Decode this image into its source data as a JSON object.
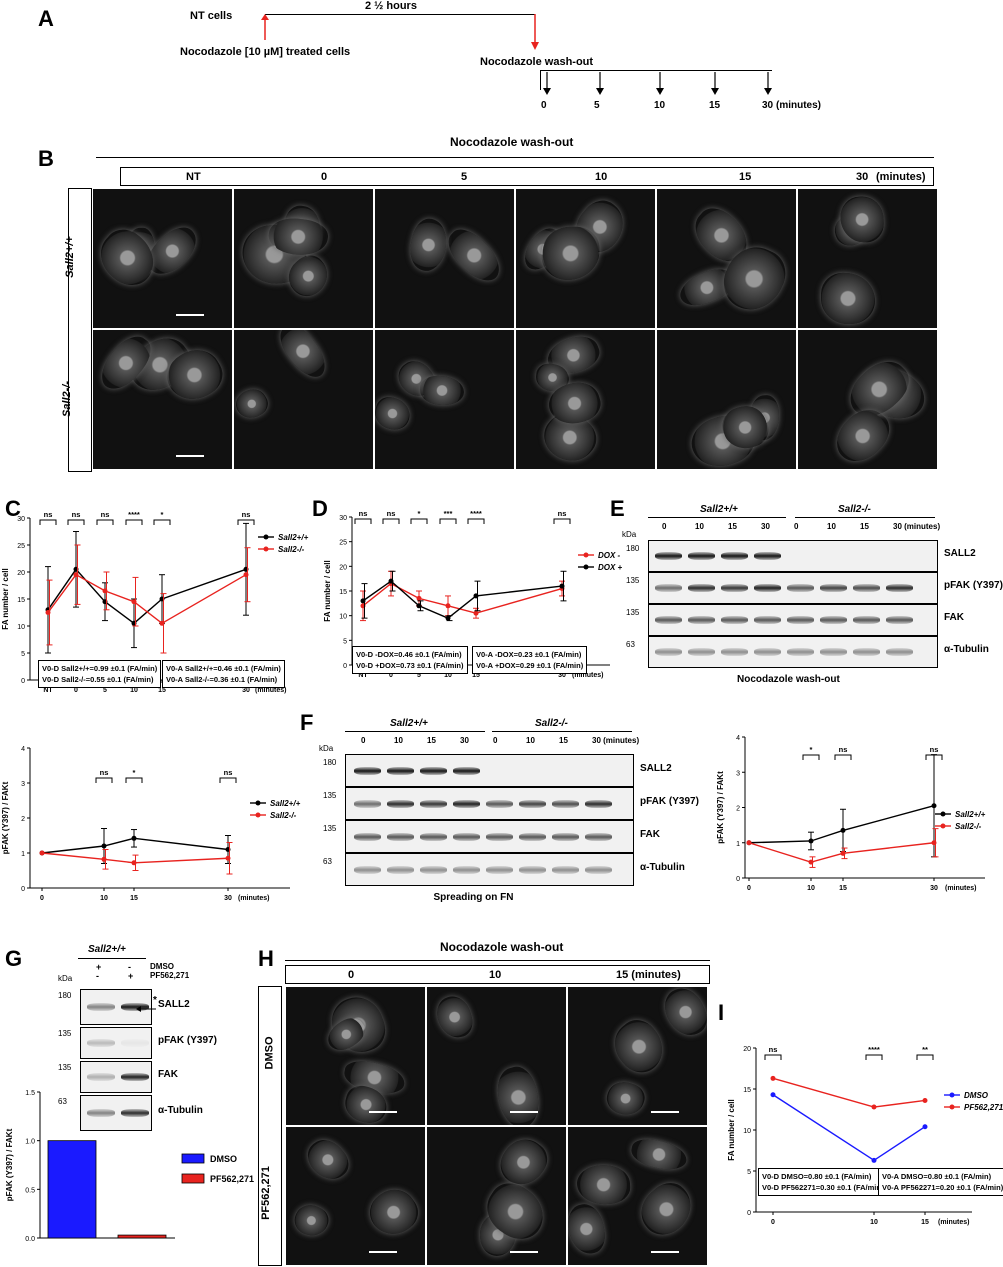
{
  "panel_letters": {
    "a": "A",
    "b": "B",
    "c": "C",
    "d": "D",
    "e": "E",
    "f": "F",
    "g": "G",
    "h": "H",
    "i": "I"
  },
  "panelA": {
    "nt_cells": "NT cells",
    "duration": "2 ½ hours",
    "noco_treated": "Nocodazole [10 µM] treated cells",
    "washout": "Nocodazole wash-out",
    "times": [
      "0",
      "5",
      "10",
      "15",
      "30"
    ],
    "unit": "(minutes)"
  },
  "panelB": {
    "title": "Nocodazole wash-out",
    "columns": [
      "NT",
      "0",
      "5",
      "10",
      "15",
      "30"
    ],
    "unit": "(minutes)",
    "rows": [
      "Sall2+/+",
      "Sall2-/-"
    ],
    "scale": "50 µm"
  },
  "panelC": {
    "legend": [
      "Sall2+/+",
      "Sall2-/-"
    ],
    "box1_l1": "V0-D Sall2+/+=0.99 ±0.1 (FA/min)",
    "box1_l2": "V0-D Sall2-/-=0.55 ±0.1 (FA/min)",
    "box2_l1": "V0-A Sall2+/+=0.46 ±0.1 (FA/min)",
    "box2_l2": "V0-A Sall2-/-=0.36 ±0.1 (FA/min)"
  },
  "panelD": {
    "legend": [
      "DOX -",
      "DOX +"
    ],
    "box1_l1": "V0-D -DOX=0.46 ±0.1 (FA/min)",
    "box1_l2": "V0-D +DOX=0.73 ±0.1 (FA/min)",
    "box2_l1": "V0-A -DOX=0.23 ±0.1 (FA/min)",
    "box2_l2": "V0-A +DOX=0.29 ±0.1 (FA/min)"
  },
  "blotE": {
    "groups": [
      "Sall2+/+",
      "Sall2-/-"
    ],
    "lanes": [
      "0",
      "10",
      "15",
      "30",
      "0",
      "10",
      "15",
      "30 (minutes)"
    ],
    "kda_title": "kDa",
    "markers": [
      "180",
      "135",
      "135",
      "63"
    ],
    "proteins": [
      "SALL2",
      "pFAK (Y397)",
      "FAK",
      "α-Tubulin"
    ],
    "caption": "Nocodazole wash-out"
  },
  "blotF": {
    "groups": [
      "Sall2+/+",
      "Sall2-/-"
    ],
    "lanes": [
      "0",
      "10",
      "15",
      "30",
      "0",
      "10",
      "15",
      "30 (minutes)"
    ],
    "kda_title": "kDa",
    "markers": [
      "180",
      "135",
      "135",
      "63"
    ],
    "proteins": [
      "SALL2",
      "pFAK (Y397)",
      "FAK",
      "α-Tubulin"
    ],
    "caption": "Spreading on FN"
  },
  "blotG": {
    "group": "Sall2+/+",
    "dmso_row": [
      "+",
      "-",
      "DMSO"
    ],
    "pf_row": [
      "-",
      "+",
      "PF562,271"
    ],
    "kda_title": "kDa",
    "markers": [
      "180",
      "135",
      "135",
      "63"
    ],
    "proteins": [
      "SALL2",
      "pFAK (Y397)",
      "FAK",
      "α-Tubulin"
    ],
    "asterisk": "*"
  },
  "panelH": {
    "title": "Nocodazole wash-out",
    "columns": [
      "0",
      "10",
      "15 (minutes)"
    ],
    "rows": [
      "DMSO",
      "PF562,271"
    ]
  },
  "panelI": {
    "legend": [
      "DMSO",
      "PF562,271"
    ],
    "box1_l1": "V0-D DMSO=0.80 ±0.1 (FA/min)",
    "box1_l2": "V0-D PF562271=0.30 ±0.1 (FA/min)",
    "box2_l1": "V0-A DMSO=0.80 ±0.1 (FA/min)",
    "box2_l2": "V0-A PF562271=0.20 ±0.1 (FA/min)"
  },
  "colors": {
    "black_series": "#000000",
    "red_series": "#e8231f",
    "blue_series": "#1a1aff"
  },
  "chart_data": [
    {
      "id": "C_top",
      "type": "line",
      "x_ticks": [
        "NT",
        "0",
        "5",
        "10",
        "15",
        "30"
      ],
      "xlabel": "(minutes)",
      "ylabel": "FA number / cell",
      "ylim": [
        0,
        30
      ],
      "series": [
        {
          "name": "Sall2+/+",
          "color": "#000000",
          "y": [
            13,
            20.5,
            14.5,
            10.5,
            15,
            20.5
          ],
          "err": [
            8,
            7,
            3.5,
            4.5,
            4.5,
            8.5
          ]
        },
        {
          "name": "Sall2-/-",
          "color": "#e8231f",
          "y": [
            12.5,
            19.5,
            16.5,
            14.5,
            10.5,
            19.5
          ],
          "err": [
            6,
            5.5,
            3.5,
            4.5,
            5.5,
            5
          ]
        }
      ],
      "significance": [
        "ns",
        "ns",
        "ns",
        "****",
        "*",
        "ns"
      ]
    },
    {
      "id": "C_bottom",
      "type": "line",
      "x_ticks": [
        "0",
        "10",
        "15",
        "30"
      ],
      "xlabel": "(minutes)",
      "ylabel": "pFAK (Y397) / FAKt",
      "ylim": [
        0,
        4
      ],
      "series": [
        {
          "name": "Sall2+/+",
          "color": "#000000",
          "y": [
            1,
            1.2,
            1.42,
            1.1
          ],
          "err": [
            0,
            0.5,
            0.25,
            0.4
          ]
        },
        {
          "name": "Sall2-/-",
          "color": "#e8231f",
          "y": [
            1,
            0.82,
            0.72,
            0.85
          ],
          "err": [
            0,
            0.28,
            0.22,
            0.45
          ]
        }
      ],
      "significance": [
        "ns",
        "*",
        "ns"
      ]
    },
    {
      "id": "D",
      "type": "line",
      "x_ticks": [
        "NT",
        "0",
        "5",
        "10",
        "15",
        "30"
      ],
      "xlabel": "(minutes)",
      "ylabel": "FA number / cell",
      "ylim": [
        0,
        30
      ],
      "series": [
        {
          "name": "DOX -",
          "color": "#e8231f",
          "y": [
            12,
            16.5,
            13.5,
            12,
            10.5,
            15.5
          ],
          "err": [
            3,
            2.5,
            1.5,
            2,
            1,
            1.5
          ]
        },
        {
          "name": "DOX +",
          "color": "#000000",
          "y": [
            13,
            17,
            12,
            9.5,
            14,
            16
          ],
          "err": [
            3.5,
            2,
            1,
            0.5,
            3,
            3
          ]
        }
      ],
      "significance": [
        "ns",
        "ns",
        "*",
        "***",
        "****",
        "ns"
      ]
    },
    {
      "id": "F_chart",
      "type": "line",
      "x_ticks": [
        "0",
        "10",
        "15",
        "30"
      ],
      "xlabel": "(minutes)",
      "ylabel": "pFAK (Y397) / FAKt",
      "ylim": [
        0,
        4
      ],
      "series": [
        {
          "name": "Sall2+/+",
          "color": "#000000",
          "y": [
            1,
            1.05,
            1.35,
            2.05
          ],
          "err": [
            0,
            0.25,
            0.6,
            1.45
          ]
        },
        {
          "name": "Sall2-/-",
          "color": "#e8231f",
          "y": [
            1,
            0.45,
            0.7,
            1.0
          ],
          "err": [
            0,
            0.15,
            0.15,
            0.4
          ]
        }
      ],
      "significance": [
        "*",
        "ns",
        "ns"
      ]
    },
    {
      "id": "G_chart",
      "type": "bar",
      "categories": [
        "DMSO",
        "PF562,271"
      ],
      "values": [
        1.0,
        0.03
      ],
      "ylabel": "pFAK (Y397) / FAKt",
      "ylim": [
        0,
        1.5
      ],
      "colors": [
        "#1a1aff",
        "#e8231f"
      ]
    },
    {
      "id": "I_chart",
      "type": "line",
      "x_ticks": [
        "0",
        "10",
        "15"
      ],
      "xlabel": "(minutes)",
      "ylabel": "FA number / cell",
      "ylim": [
        0,
        20
      ],
      "series": [
        {
          "name": "DMSO",
          "color": "#1a1aff",
          "y": [
            14.3,
            6.3,
            10.4
          ]
        },
        {
          "name": "PF562,271",
          "color": "#e8231f",
          "y": [
            16.3,
            12.8,
            13.6
          ]
        }
      ],
      "significance": [
        "ns",
        "****",
        "**"
      ]
    }
  ]
}
